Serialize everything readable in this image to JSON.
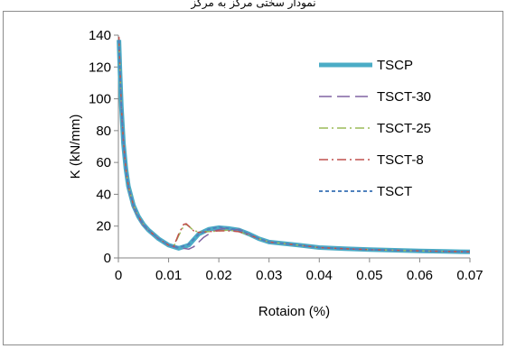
{
  "caption": "نمودار سختی مرکز به مرکز",
  "chart_data": {
    "type": "line",
    "title": "",
    "xlabel": "Rotaion (%)",
    "ylabel": "K (kN/mm)",
    "xlim": [
      0,
      0.07
    ],
    "ylim": [
      0,
      140
    ],
    "xticks": [
      "0",
      "0.01",
      "0.02",
      "0.03",
      "0.04",
      "0.05",
      "0.06",
      "0.07"
    ],
    "yticks": [
      "0",
      "20",
      "40",
      "60",
      "80",
      "100",
      "120",
      "140"
    ],
    "grid": false,
    "legend_position": "right",
    "series": [
      {
        "name": "TSCP",
        "color": "#4bacc6",
        "dash": "solid",
        "width": 5,
        "x": [
          0.0001,
          0.0003,
          0.0006,
          0.001,
          0.0015,
          0.002,
          0.003,
          0.004,
          0.005,
          0.006,
          0.008,
          0.01,
          0.012,
          0.014,
          0.016,
          0.018,
          0.02,
          0.022,
          0.024,
          0.026,
          0.028,
          0.03,
          0.033,
          0.036,
          0.04,
          0.045,
          0.05,
          0.055,
          0.06,
          0.065,
          0.07
        ],
        "y": [
          137,
          118,
          95,
          72,
          56,
          45,
          33,
          26,
          21,
          17.5,
          12,
          8,
          6,
          8,
          15,
          18,
          19,
          18.5,
          17.5,
          15,
          12,
          10,
          9,
          8,
          6.5,
          5.8,
          5.2,
          4.8,
          4.4,
          4.1,
          3.8
        ]
      },
      {
        "name": "TSCT-30",
        "color": "#8064a2",
        "dash": "14 6",
        "width": 1.5,
        "x": [
          0.0001,
          0.0003,
          0.0006,
          0.001,
          0.0015,
          0.002,
          0.003,
          0.004,
          0.005,
          0.006,
          0.008,
          0.01,
          0.012,
          0.013,
          0.014,
          0.015,
          0.017,
          0.019,
          0.021,
          0.023,
          0.024,
          0.026,
          0.028,
          0.03,
          0.033,
          0.036,
          0.04,
          0.045,
          0.05,
          0.055,
          0.06,
          0.065,
          0.07
        ],
        "y": [
          136,
          117,
          94,
          71,
          55,
          44,
          32,
          25,
          20.5,
          17,
          12,
          8,
          6,
          6,
          5.5,
          7,
          13,
          17,
          18.5,
          17.5,
          18,
          15,
          12,
          10,
          9,
          8,
          6.5,
          5.8,
          5.2,
          4.8,
          4.4,
          4.1,
          3.8
        ]
      },
      {
        "name": "TSCT-25",
        "color": "#9bbb59",
        "dash": "10 4 2 4",
        "width": 1.5,
        "x": [
          0.0001,
          0.0003,
          0.0006,
          0.001,
          0.0015,
          0.002,
          0.003,
          0.004,
          0.005,
          0.006,
          0.008,
          0.01,
          0.011,
          0.012,
          0.013,
          0.0135,
          0.014,
          0.015,
          0.016,
          0.018,
          0.02,
          0.022,
          0.024,
          0.026,
          0.028,
          0.03,
          0.033,
          0.036,
          0.04,
          0.045,
          0.05,
          0.055,
          0.06,
          0.065,
          0.07
        ],
        "y": [
          138,
          119,
          95,
          72,
          56,
          45,
          33,
          26,
          21,
          17.5,
          12,
          8,
          7,
          14,
          20,
          21,
          20,
          17,
          16.5,
          16.5,
          17,
          17.5,
          16.5,
          14.5,
          12,
          10,
          9,
          8,
          6.5,
          5.8,
          5.2,
          4.8,
          4.4,
          4.1,
          3.8
        ]
      },
      {
        "name": "TSCT-8",
        "color": "#c0504d",
        "dash": "10 4 2 4",
        "width": 1.5,
        "x": [
          0.0001,
          0.0003,
          0.0006,
          0.001,
          0.0015,
          0.002,
          0.003,
          0.004,
          0.005,
          0.006,
          0.008,
          0.01,
          0.011,
          0.012,
          0.013,
          0.0135,
          0.014,
          0.015,
          0.016,
          0.018,
          0.02,
          0.022,
          0.024,
          0.026,
          0.028,
          0.03,
          0.033,
          0.036,
          0.04,
          0.045,
          0.05,
          0.055,
          0.06,
          0.065,
          0.07
        ],
        "y": [
          139,
          120,
          96,
          73,
          56,
          45,
          33,
          26,
          21,
          17.5,
          12,
          8,
          7,
          15,
          21,
          21.5,
          20,
          17,
          16,
          16.5,
          17,
          17,
          16.5,
          14.5,
          12,
          10,
          9,
          8,
          6.5,
          5.8,
          5.2,
          4.8,
          4.4,
          4.1,
          3.8
        ]
      },
      {
        "name": "TSCT",
        "color": "#4f81bd",
        "dash": "4 3",
        "width": 2,
        "x": [
          0.0001,
          0.0003,
          0.0006,
          0.001,
          0.0015,
          0.002,
          0.003,
          0.004,
          0.005,
          0.006,
          0.008,
          0.01,
          0.012,
          0.014,
          0.016,
          0.018,
          0.02,
          0.022,
          0.024,
          0.026,
          0.028,
          0.03,
          0.033,
          0.036,
          0.04,
          0.045,
          0.05,
          0.055,
          0.06,
          0.065,
          0.07
        ],
        "y": [
          137,
          118,
          95,
          72,
          56,
          45,
          33,
          26,
          21,
          17.5,
          12,
          8,
          6.5,
          8.5,
          15,
          18,
          19.5,
          18.5,
          17.5,
          15,
          12,
          10,
          9,
          8,
          6.5,
          5.8,
          5.2,
          4.8,
          4.4,
          4.1,
          3.8
        ]
      }
    ]
  }
}
